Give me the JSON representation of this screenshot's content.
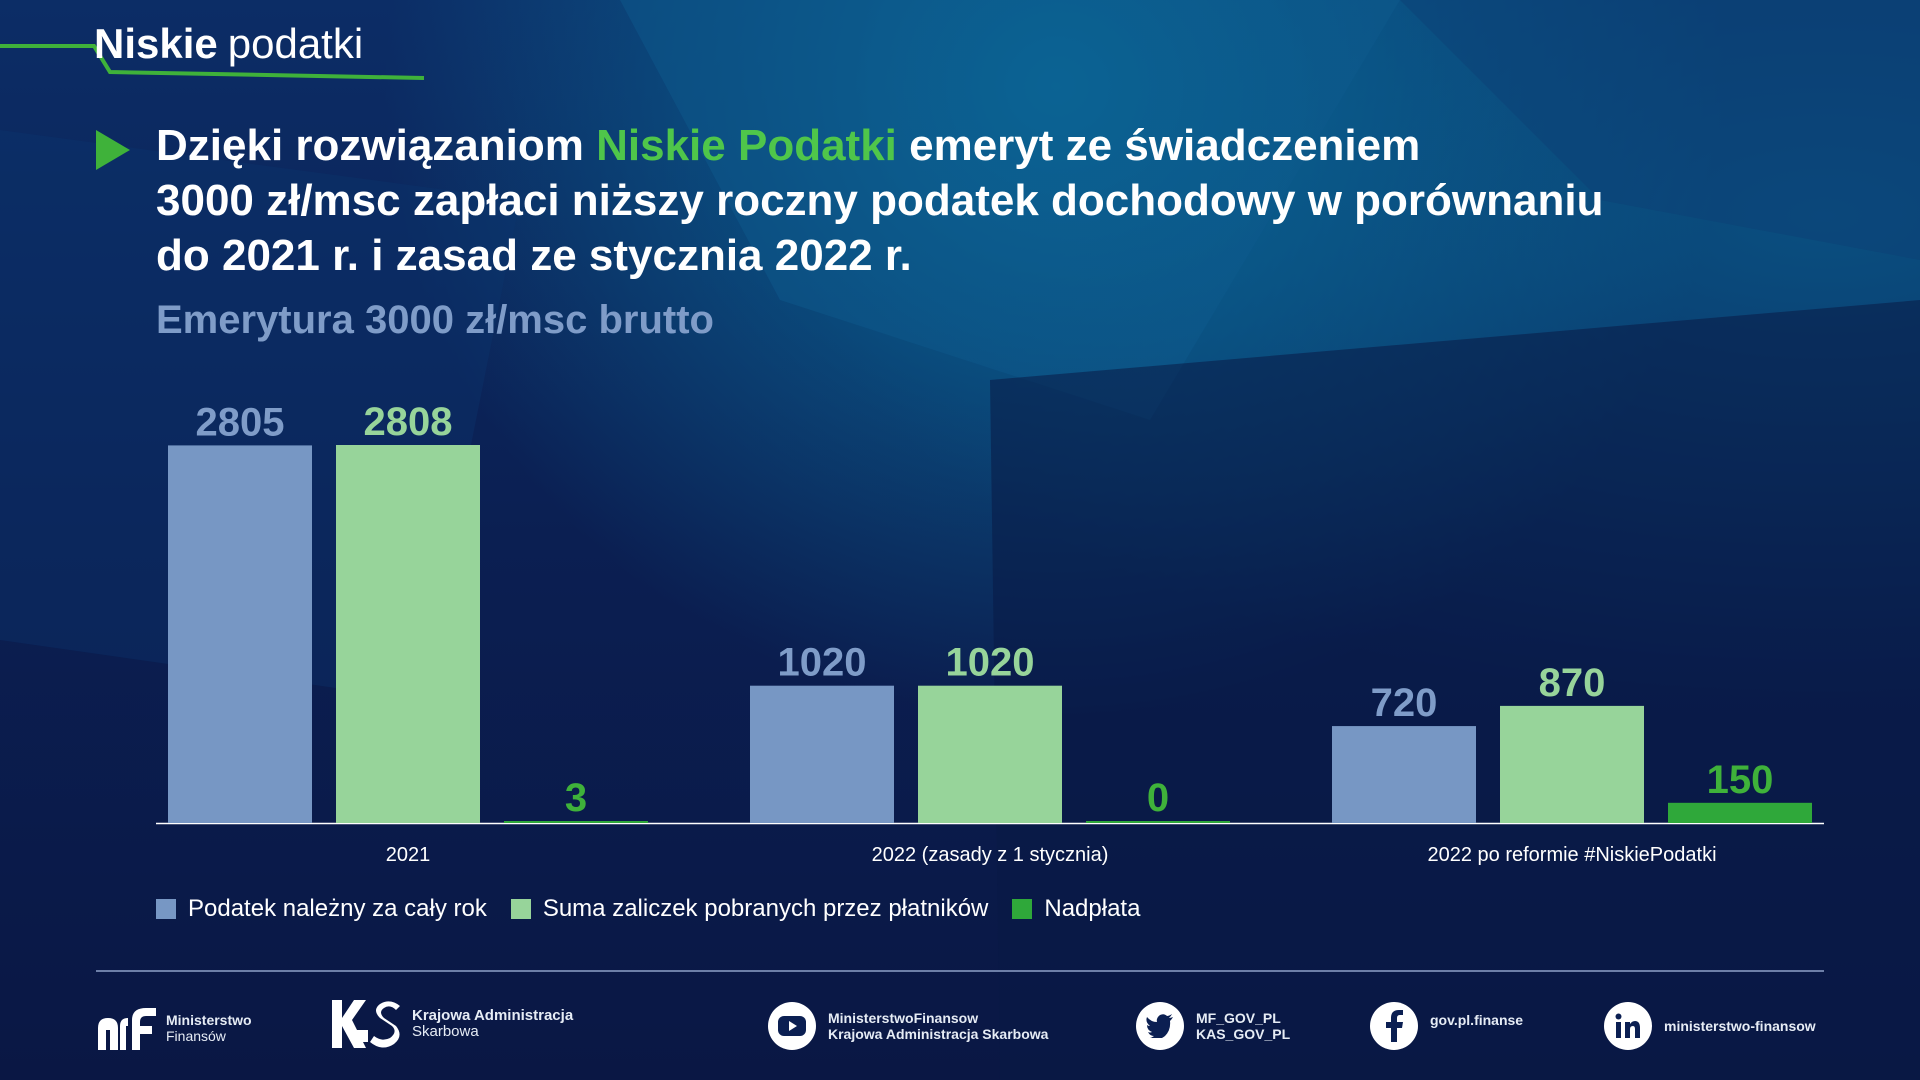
{
  "brand": {
    "bold": "Niskie",
    "light": "podatki"
  },
  "headline": {
    "part1": "Dzięki rozwiązaniom ",
    "highlight": "Niskie Podatki",
    "part2": " emeryt ze świadczeniem",
    "line2": "3000 zł/msc zapłaci niższy roczny podatek dochodowy w porównaniu",
    "line3": "do 2021 r. i zasad ze stycznia 2022 r."
  },
  "chart_data": {
    "type": "bar",
    "title": "",
    "subtitle": "Emerytura 3000 zł/msc brutto",
    "xlabel": "",
    "ylabel": "",
    "ylim": [
      0,
      2808
    ],
    "grid": false,
    "legend_position": "bottom-left",
    "categories": [
      "2021",
      "2022 (zasady z 1 stycznia)",
      "2022 po reformie #NiskiePodatki"
    ],
    "series": [
      {
        "name": "Podatek należny za cały rok",
        "values": [
          2805,
          1020,
          720
        ],
        "color": "#7797c4",
        "label_color": "#7f9cc8"
      },
      {
        "name": "Suma zaliczek pobranych przez płatników",
        "values": [
          2808,
          1020,
          870
        ],
        "color": "#97d49a",
        "label_color": "#97d49a"
      },
      {
        "name": "Nadpłata",
        "values": [
          3,
          0,
          150
        ],
        "color": "#2fa83a",
        "label_color": "#3fb23a"
      }
    ]
  },
  "footer": {
    "mf_line1": "Ministerstwo",
    "mf_line2": "Finansów",
    "kas_line1": "Krajowa Administracja",
    "kas_line2": "Skarbowa",
    "youtube_line1": "MinisterstwoFinansow",
    "youtube_line2": "Krajowa Administracja Skarbowa",
    "twitter_line1": "MF_GOV_PL",
    "twitter_line2": "KAS_GOV_PL",
    "facebook": "gov.pl.finanse",
    "linkedin": "ministerstwo-finansow"
  }
}
